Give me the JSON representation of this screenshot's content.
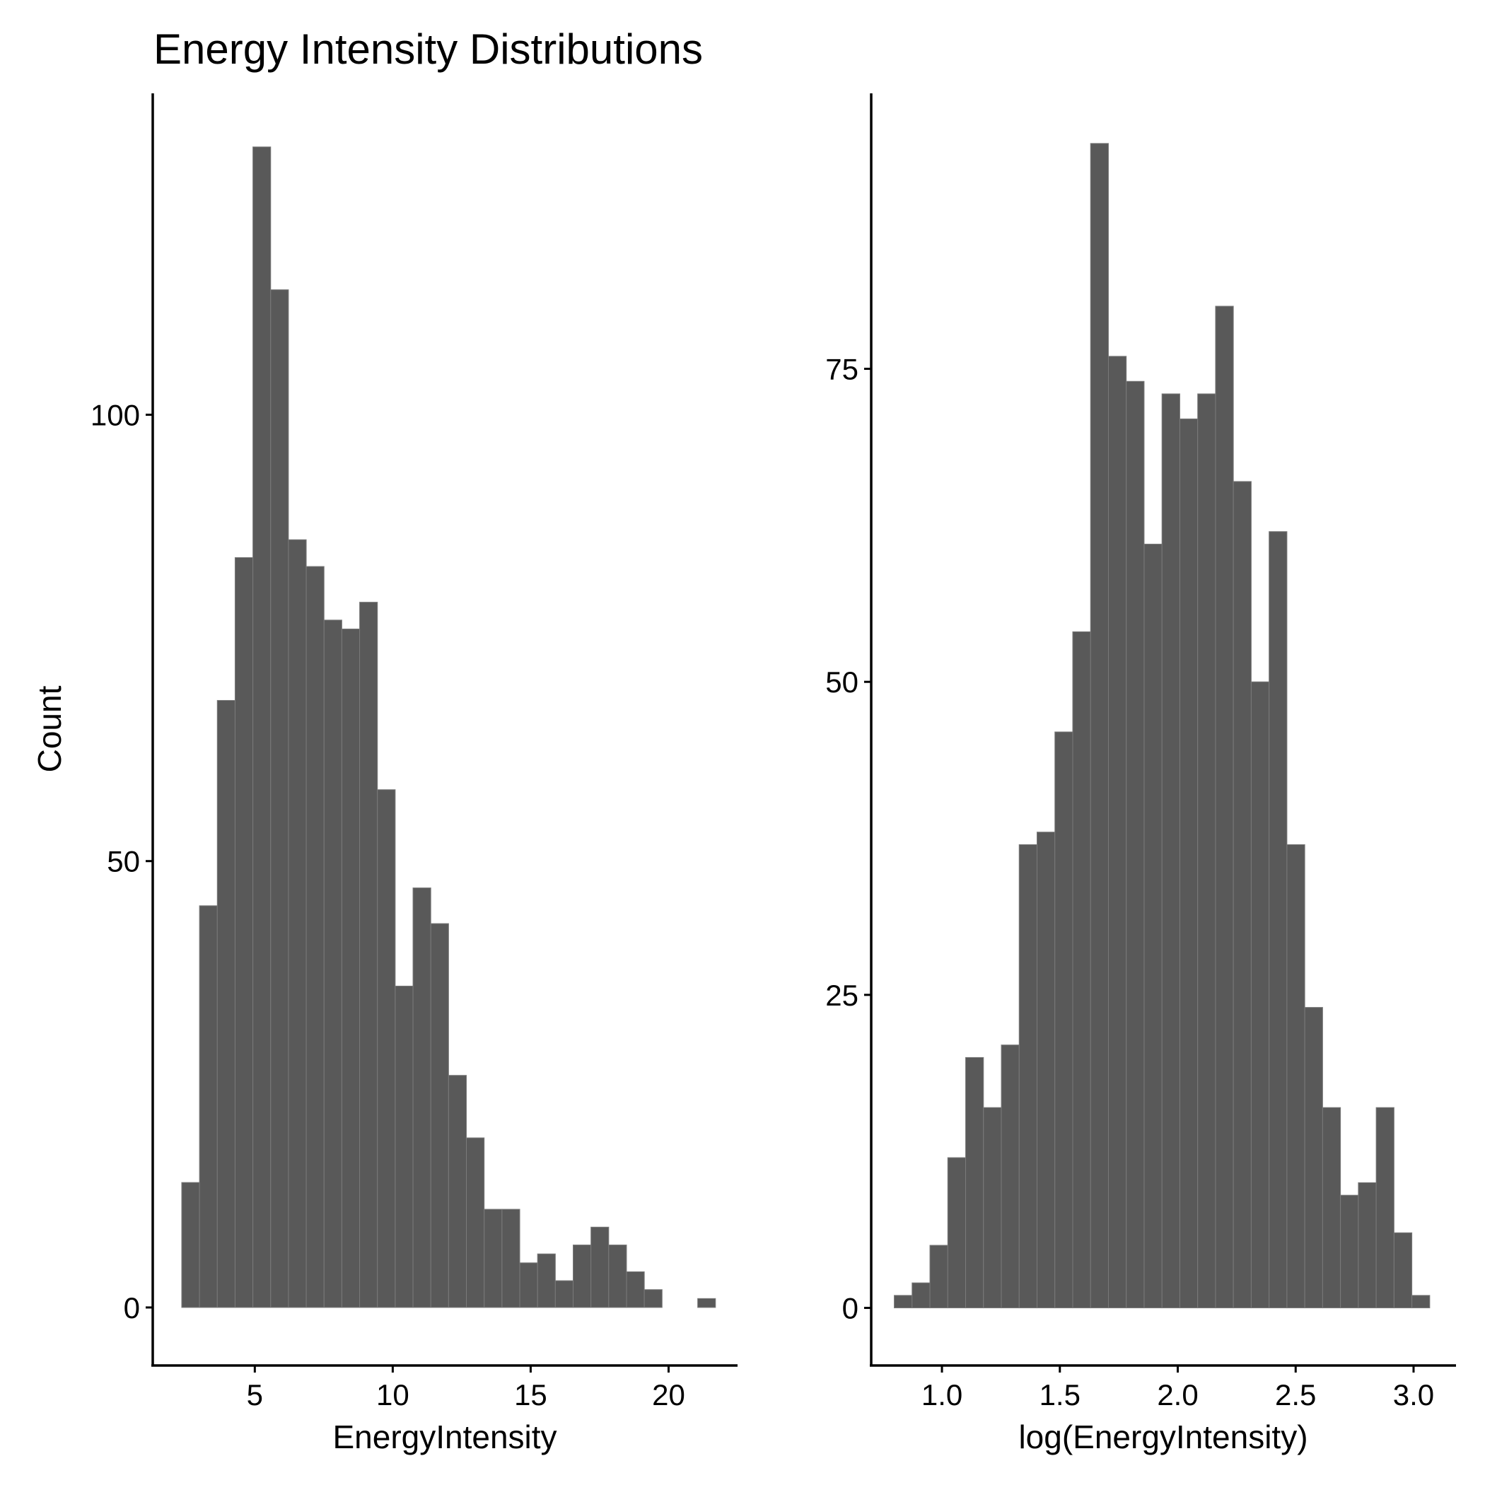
{
  "figure": {
    "title": "Energy Intensity Distributions",
    "bar_color": "#595959",
    "axis_color": "#000000",
    "background": "#ffffff"
  },
  "chart_data": [
    {
      "type": "bar",
      "subtype": "histogram",
      "title": "Energy Intensity Distributions",
      "xlabel": "EnergyIntensity",
      "ylabel": "Count",
      "bin_width": 0.645,
      "bin_starts": [
        2.35,
        2.995,
        3.64,
        4.285,
        4.93,
        5.575,
        6.22,
        6.865,
        7.51,
        8.155,
        8.8,
        9.445,
        10.09,
        10.735,
        11.38,
        12.025,
        12.67,
        13.315,
        13.96,
        14.605,
        15.25,
        15.895,
        16.54,
        17.185,
        17.83,
        18.475,
        19.12,
        19.765,
        20.41,
        21.055
      ],
      "values": [
        14,
        45,
        68,
        84,
        130,
        114,
        86,
        83,
        77,
        76,
        79,
        58,
        36,
        47,
        43,
        26,
        19,
        11,
        11,
        5,
        6,
        3,
        7,
        9,
        7,
        4,
        2,
        0,
        0,
        1
      ],
      "xlim": [
        1.3,
        22.5
      ],
      "ylim": [
        -6.5,
        136
      ],
      "x_ticks": [
        5,
        10,
        15,
        20
      ],
      "x_tick_labels": [
        "5",
        "10",
        "15",
        "20"
      ],
      "y_ticks": [
        0,
        50,
        100
      ],
      "y_tick_labels": [
        "0",
        "50",
        "100"
      ],
      "grid": false,
      "legend": "none"
    },
    {
      "type": "bar",
      "subtype": "histogram",
      "xlabel": "log(EnergyIntensity)",
      "ylabel": "",
      "bin_width": 0.0757,
      "bin_starts": [
        0.7976,
        0.8733,
        0.949,
        1.0247,
        1.1004,
        1.1761,
        1.2518,
        1.3275,
        1.4032,
        1.4789,
        1.5546,
        1.6303,
        1.706,
        1.7817,
        1.8574,
        1.9331,
        2.0088,
        2.0845,
        2.1602,
        2.2359,
        2.3116,
        2.3873,
        2.463,
        2.5387,
        2.6144,
        2.6901,
        2.7658,
        2.8415,
        2.9172,
        2.9929
      ],
      "values": [
        1,
        2,
        5,
        12,
        20,
        16,
        21,
        37,
        38,
        46,
        54,
        93,
        76,
        74,
        61,
        73,
        71,
        73,
        80,
        66,
        50,
        62,
        37,
        24,
        16,
        9,
        10,
        16,
        6,
        1
      ],
      "xlim": [
        0.7,
        3.18
      ],
      "ylim": [
        -4.6,
        97
      ],
      "x_ticks": [
        1.0,
        1.5,
        2.0,
        2.5,
        3.0
      ],
      "x_tick_labels": [
        "1.0",
        "1.5",
        "2.0",
        "2.5",
        "3.0"
      ],
      "y_ticks": [
        0,
        25,
        50,
        75
      ],
      "y_tick_labels": [
        "0",
        "25",
        "50",
        "75"
      ],
      "grid": false,
      "legend": "none"
    }
  ]
}
